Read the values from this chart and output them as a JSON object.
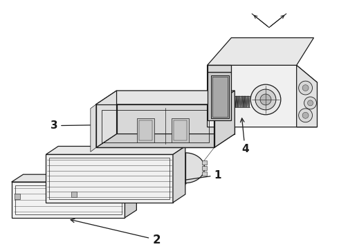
{
  "bg_color": "#ffffff",
  "line_color": "#1a1a1a",
  "lw": 0.9,
  "figsize": [
    4.9,
    3.6
  ],
  "dpi": 100,
  "label_fontsize": 11
}
